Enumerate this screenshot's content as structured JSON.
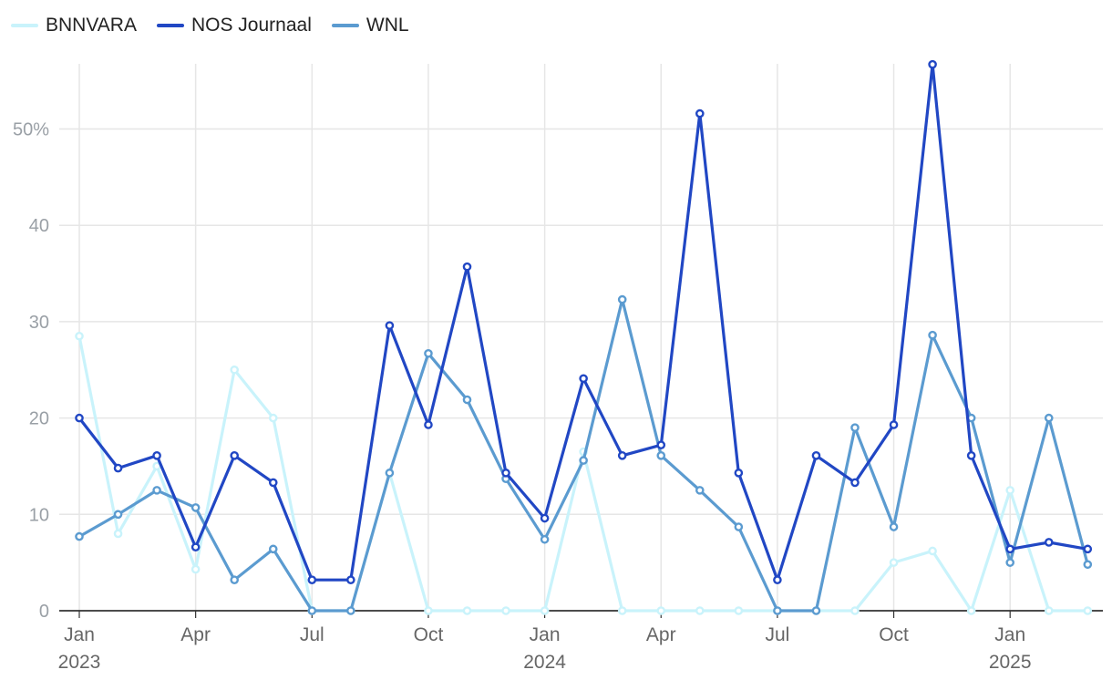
{
  "chart_data": {
    "type": "line",
    "title": "",
    "xlabel": "",
    "ylabel": "",
    "ylim": [
      0,
      57
    ],
    "y_ticks": [
      0,
      10,
      20,
      30,
      40,
      50
    ],
    "y_tick_labels": [
      "0",
      "10",
      "20",
      "30",
      "40",
      "50%"
    ],
    "x": [
      "2023-01",
      "2023-02",
      "2023-03",
      "2023-04",
      "2023-05",
      "2023-06",
      "2023-07",
      "2023-08",
      "2023-09",
      "2023-10",
      "2023-11",
      "2023-12",
      "2024-01",
      "2024-02",
      "2024-03",
      "2024-04",
      "2024-05",
      "2024-06",
      "2024-07",
      "2024-08",
      "2024-09",
      "2024-10",
      "2024-11",
      "2024-12",
      "2025-01",
      "2025-02",
      "2025-03"
    ],
    "x_tick_labels": [
      {
        "index": 0,
        "month": "Jan",
        "year": "2023"
      },
      {
        "index": 3,
        "month": "Apr",
        "year": ""
      },
      {
        "index": 6,
        "month": "Jul",
        "year": ""
      },
      {
        "index": 9,
        "month": "Oct",
        "year": ""
      },
      {
        "index": 12,
        "month": "Jan",
        "year": "2024"
      },
      {
        "index": 15,
        "month": "Apr",
        "year": ""
      },
      {
        "index": 18,
        "month": "Jul",
        "year": ""
      },
      {
        "index": 21,
        "month": "Oct",
        "year": ""
      },
      {
        "index": 24,
        "month": "Jan",
        "year": "2025"
      }
    ],
    "series": [
      {
        "name": "BNNVARA",
        "color": "#c9f3fb",
        "values": [
          28.5,
          8.0,
          15.0,
          4.3,
          25.0,
          20.0,
          0,
          0,
          14.3,
          0,
          0,
          0,
          0,
          16.5,
          0,
          0,
          0,
          0,
          0,
          0,
          0,
          5.0,
          6.2,
          0,
          12.5,
          0,
          0
        ]
      },
      {
        "name": "NOS Journaal",
        "color": "#2147c4",
        "values": [
          20.0,
          14.8,
          16.1,
          6.6,
          16.1,
          13.3,
          3.2,
          3.2,
          29.6,
          19.3,
          35.7,
          14.3,
          9.6,
          24.1,
          16.1,
          17.2,
          51.6,
          14.3,
          3.2,
          16.1,
          13.3,
          19.3,
          56.7,
          16.1,
          6.4,
          7.1,
          6.4
        ]
      },
      {
        "name": "WNL",
        "color": "#5b9bd0",
        "values": [
          7.7,
          10.0,
          12.5,
          10.7,
          3.2,
          6.4,
          0,
          0,
          14.3,
          26.7,
          21.9,
          13.7,
          7.4,
          15.6,
          32.3,
          16.1,
          12.5,
          8.7,
          0,
          0,
          19.0,
          8.7,
          28.6,
          20.0,
          5.0,
          20.0,
          4.8
        ]
      }
    ],
    "legend_position": "top-left",
    "grid": true
  }
}
